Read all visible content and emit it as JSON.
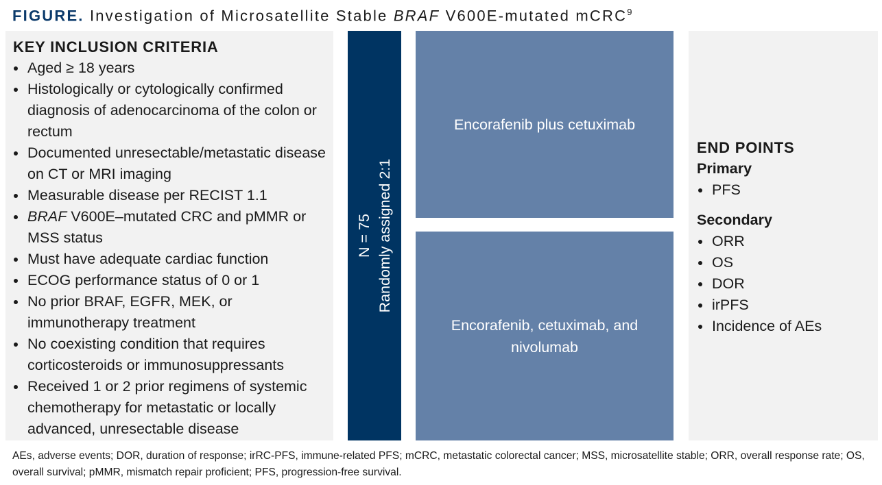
{
  "title": {
    "label": "FIGURE.",
    "text_before": "Investigation of Microsatellite Stable ",
    "italic": "BRAF",
    "text_after": " V600E-mutated mCRC",
    "superscript": "9"
  },
  "criteria": {
    "heading": "KEY INCLUSION CRITERIA",
    "items": [
      {
        "text": "Aged ≥ 18 years"
      },
      {
        "text": "Histologically or cytologically confirmed diagnosis of adenocarcinoma of the colon or rectum"
      },
      {
        "text": "Documented unresectable/metastatic disease on CT or MRI imaging"
      },
      {
        "text": "Measurable disease per RECIST 1.1"
      },
      {
        "italic": "BRAF",
        "text": " V600E–mutated CRC and pMMR or MSS status"
      },
      {
        "text": "Must have adequate cardiac function"
      },
      {
        "text": "ECOG performance status of 0 or 1"
      },
      {
        "text": "No prior BRAF, EGFR, MEK, or immunotherapy treatment"
      },
      {
        "text": "No coexisting condition that requires corticosteroids or immunosuppressants"
      },
      {
        "text": "Received 1 or 2 prior regimens of systemic chemotherapy for metastatic or locally advanced, unresectable disease"
      }
    ]
  },
  "randomization": {
    "n": "N = 75",
    "text": "Randomly assigned 2:1"
  },
  "arms": [
    "Encorafenib plus cetuximab",
    "Encorafenib, cetuximab, and nivolumab"
  ],
  "end_points": {
    "heading": "END POINTS",
    "primary": {
      "label": "Primary",
      "items": [
        "PFS"
      ]
    },
    "secondary": {
      "label": "Secondary",
      "items": [
        "ORR",
        "OS",
        "DOR",
        "irPFS",
        "Incidence of AEs"
      ]
    }
  },
  "footnote": "AEs, adverse events; DOR, duration of response; irRC-PFS, immune-related PFS; mCRC, metastatic colorectal cancer; MSS, microsatellite stable; ORR, overall response rate; OS, overall survival; pMMR, mismatch repair proficient; PFS, progression-free survival."
}
